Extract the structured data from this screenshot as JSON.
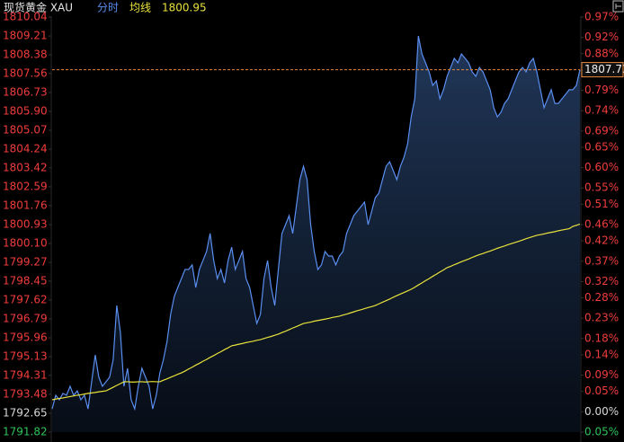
{
  "chart_data": {
    "type": "line",
    "title": "现货黄金 XAU",
    "series": [
      {
        "name": "分时",
        "color": "#5a8ef0",
        "fill": true,
        "values": [
          1792.84,
          1793.44,
          1793.24,
          1793.52,
          1793.44,
          1793.83,
          1793.44,
          1793.63,
          1793.24,
          1793.44,
          1792.84,
          1794.03,
          1795.21,
          1794.23,
          1793.83,
          1794.03,
          1794.23,
          1795.01,
          1797.38,
          1796.2,
          1793.83,
          1794.62,
          1793.24,
          1792.84,
          1793.83,
          1794.62,
          1794.23,
          1793.83,
          1792.84,
          1793.44,
          1794.42,
          1795.01,
          1795.8,
          1796.99,
          1797.77,
          1798.17,
          1798.56,
          1798.96,
          1798.96,
          1799.16,
          1798.17,
          1798.96,
          1799.35,
          1799.75,
          1800.54,
          1799.35,
          1798.56,
          1798.96,
          1798.37,
          1799.35,
          1799.94,
          1798.96,
          1799.35,
          1799.75,
          1798.56,
          1798.17,
          1797.38,
          1796.59,
          1796.99,
          1798.56,
          1799.35,
          1798.17,
          1797.38,
          1798.96,
          1800.54,
          1800.93,
          1801.32,
          1800.54,
          1801.72,
          1802.9,
          1803.49,
          1802.9,
          1800.93,
          1799.75,
          1798.96,
          1799.16,
          1799.75,
          1799.55,
          1799.55,
          1799.16,
          1799.55,
          1799.75,
          1800.54,
          1800.93,
          1801.32,
          1801.52,
          1801.72,
          1801.92,
          1800.93,
          1801.52,
          1802.11,
          1802.31,
          1802.9,
          1803.49,
          1803.69,
          1803.3,
          1802.9,
          1803.49,
          1803.89,
          1804.48,
          1805.66,
          1806.45,
          1809.21,
          1808.42,
          1808.03,
          1807.63,
          1807.04,
          1807.24,
          1806.45,
          1806.85,
          1807.44,
          1807.83,
          1808.23,
          1808.03,
          1808.42,
          1808.23,
          1808.03,
          1807.63,
          1807.44,
          1807.83,
          1807.63,
          1807.24,
          1806.85,
          1806.06,
          1805.66,
          1805.86,
          1806.25,
          1806.45,
          1806.85,
          1807.24,
          1807.63,
          1807.83,
          1807.63,
          1808.03,
          1808.23,
          1807.63,
          1806.85,
          1806.06,
          1806.45,
          1806.85,
          1806.25,
          1806.25,
          1806.45,
          1806.65,
          1806.85,
          1806.85,
          1807.04,
          1807.73
        ]
      },
      {
        "name": "均线",
        "color": "#e8e23c",
        "fill": false,
        "values": [
          1793.24,
          1793.27,
          1793.3,
          1793.32,
          1793.35,
          1793.38,
          1793.41,
          1793.44,
          1793.46,
          1793.49,
          1793.52,
          1793.54,
          1793.56,
          1793.59,
          1793.61,
          1793.63,
          1793.71,
          1793.79,
          1793.87,
          1793.95,
          1794.03,
          1794.03,
          1794.02,
          1794.02,
          1794.03,
          1794.03,
          1794.02,
          1794.03,
          1794.04,
          1794.03,
          1794.03,
          1794.1,
          1794.16,
          1794.23,
          1794.29,
          1794.36,
          1794.42,
          1794.5,
          1794.59,
          1794.67,
          1794.76,
          1794.84,
          1794.93,
          1795.01,
          1795.1,
          1795.18,
          1795.27,
          1795.35,
          1795.44,
          1795.52,
          1795.61,
          1795.64,
          1795.68,
          1795.71,
          1795.75,
          1795.78,
          1795.81,
          1795.85,
          1795.88,
          1795.93,
          1795.98,
          1796.02,
          1796.07,
          1796.12,
          1796.19,
          1796.25,
          1796.32,
          1796.39,
          1796.45,
          1796.52,
          1796.59,
          1796.62,
          1796.65,
          1796.69,
          1796.72,
          1796.75,
          1796.78,
          1796.81,
          1796.85,
          1796.88,
          1796.91,
          1796.96,
          1797.0,
          1797.05,
          1797.1,
          1797.15,
          1797.19,
          1797.24,
          1797.29,
          1797.33,
          1797.38,
          1797.45,
          1797.52,
          1797.59,
          1797.66,
          1797.74,
          1797.81,
          1797.88,
          1797.95,
          1798.02,
          1798.09,
          1798.18,
          1798.28,
          1798.37,
          1798.47,
          1798.56,
          1798.66,
          1798.75,
          1798.85,
          1798.94,
          1799.04,
          1799.1,
          1799.17,
          1799.23,
          1799.3,
          1799.36,
          1799.42,
          1799.49,
          1799.55,
          1799.61,
          1799.66,
          1799.72,
          1799.77,
          1799.83,
          1799.89,
          1799.94,
          1799.99,
          1800.05,
          1800.1,
          1800.15,
          1800.2,
          1800.25,
          1800.31,
          1800.36,
          1800.41,
          1800.46,
          1800.49,
          1800.52,
          1800.56,
          1800.59,
          1800.62,
          1800.66,
          1800.69,
          1800.72,
          1800.75,
          1800.85,
          1800.9,
          1800.95
        ]
      }
    ],
    "ylim": [
      1791.82,
      1810.04
    ],
    "yticks": [
      1810.04,
      1809.21,
      1808.38,
      1807.56,
      1806.73,
      {
        "value": 1805.9,
        "label": "1805.90"
      },
      1805.07,
      1804.24,
      1803.42,
      1802.59,
      1801.76,
      1800.93,
      {
        "value": 1800.1,
        "label": "1800.10"
      },
      1799.27,
      1798.45,
      1797.62,
      1796.79,
      1795.96,
      1795.13,
      1794.31,
      1793.48,
      1792.65,
      1791.82
    ],
    "y2lim": [
      -0.05,
      0.97
    ],
    "y2ticks": [
      {
        "value": 0.97,
        "label": "0.97%"
      },
      {
        "value": 0.92,
        "label": "0.92%"
      },
      {
        "value": 0.88,
        "label": "0.88%"
      },
      {
        "value": 0.83,
        "label": "0.83%"
      },
      {
        "value": 0.79,
        "label": "0.79%"
      },
      {
        "value": 0.74,
        "label": "0.74%"
      },
      {
        "value": 0.69,
        "label": "0.69%"
      },
      {
        "value": 0.65,
        "label": "0.65%"
      },
      {
        "value": 0.6,
        "label": "0.60%"
      },
      {
        "value": 0.55,
        "label": "0.55%"
      },
      {
        "value": 0.51,
        "label": "0.51%"
      },
      {
        "value": 0.46,
        "label": "0.46%"
      },
      {
        "value": 0.42,
        "label": "0.42%"
      },
      {
        "value": 0.37,
        "label": "0.37%"
      },
      {
        "value": 0.32,
        "label": "0.32%"
      },
      {
        "value": 0.28,
        "label": "0.28%"
      },
      {
        "value": 0.23,
        "label": "0.23%"
      },
      {
        "value": 0.18,
        "label": "0.18%"
      },
      {
        "value": 0.14,
        "label": "0.14%"
      },
      {
        "value": 0.09,
        "label": "0.09%"
      },
      {
        "value": 0.05,
        "label": "0.05%"
      },
      {
        "value": 0,
        "label": "0.00%"
      },
      {
        "value": -0.05,
        "label": "0.05%"
      }
    ],
    "grid": false,
    "tick_colors": {
      "up": "#f03c3c",
      "down": "#2fc25b",
      "flat": "#d8d8d8"
    },
    "last_price_color": "#e8873a"
  }
}
